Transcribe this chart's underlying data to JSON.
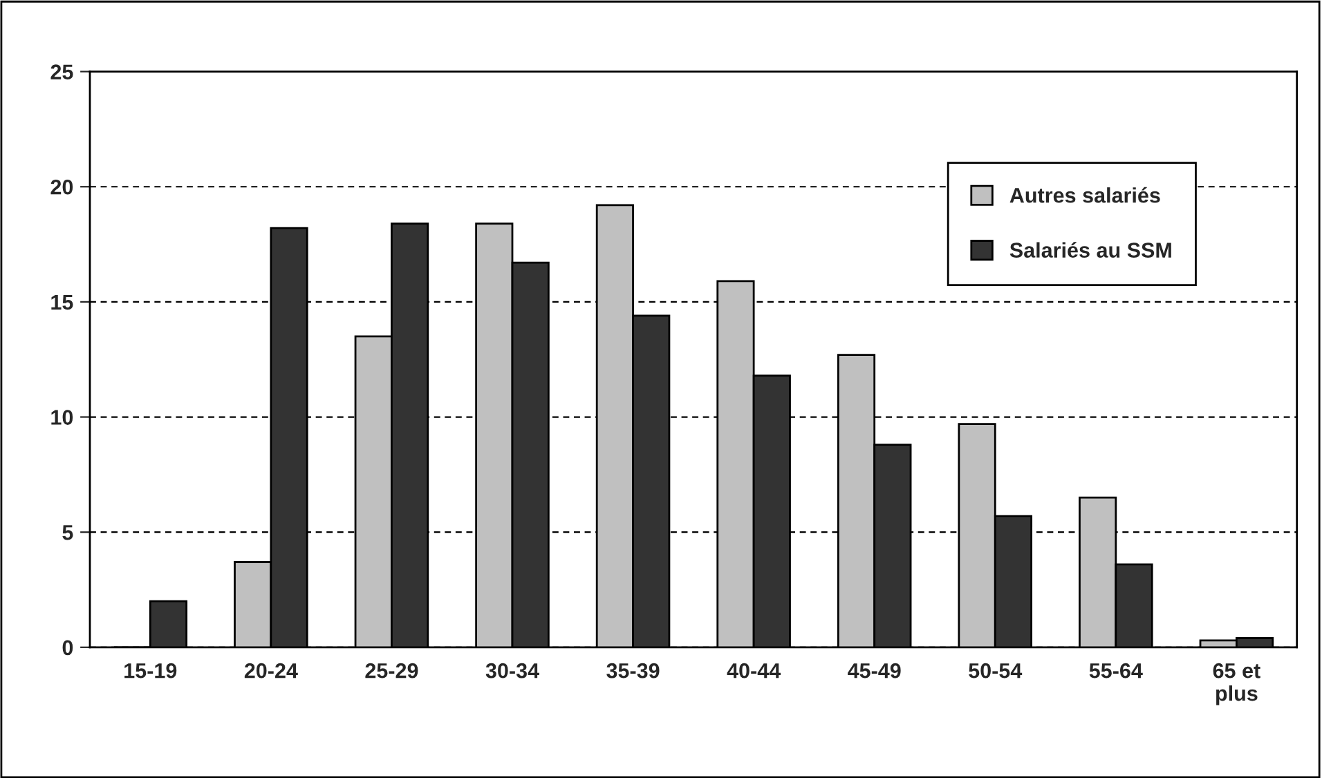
{
  "chart_data": {
    "type": "bar",
    "categories": [
      "15-19",
      "20-24",
      "25-29",
      "30-34",
      "35-39",
      "40-44",
      "45-49",
      "50-54",
      "55-64",
      "65 et\nplus"
    ],
    "series": [
      {
        "name": "Autres salariés",
        "color": "#c0c0c0",
        "values": [
          0,
          3.7,
          13.5,
          18.4,
          19.2,
          15.9,
          12.7,
          9.7,
          6.5,
          0.3
        ]
      },
      {
        "name": "Salariés au SSM",
        "color": "#333333",
        "values": [
          2.0,
          18.2,
          18.4,
          16.7,
          14.4,
          11.8,
          8.8,
          5.7,
          3.6,
          0.4
        ]
      }
    ],
    "ylim": [
      0,
      25
    ],
    "yticks": [
      0,
      5,
      10,
      15,
      20,
      25
    ],
    "grid": "y",
    "legend": "top right"
  }
}
